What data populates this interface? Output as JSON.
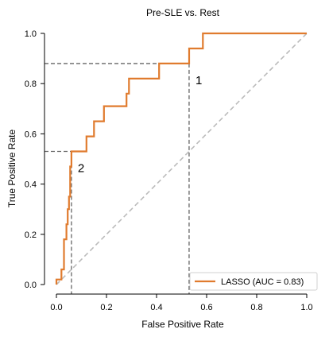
{
  "chart_data": {
    "type": "line",
    "title": "Pre-SLE vs. Rest",
    "xlabel": "False Positive Rate",
    "ylabel": "True Positive Rate",
    "xlim": [
      0,
      1
    ],
    "ylim": [
      0,
      1
    ],
    "x_ticks": [
      "0.0",
      "0.2",
      "0.4",
      "0.6",
      "0.8",
      "1.0"
    ],
    "y_ticks": [
      "0.0",
      "0.2",
      "0.4",
      "0.6",
      "0.8",
      "1.0"
    ],
    "grid": false,
    "legend_position": "lower-right",
    "series": [
      {
        "name": "LASSO (AUC = 0.83)",
        "color": "#e07b2e",
        "points": [
          [
            0.0,
            0.0
          ],
          [
            0.0,
            0.02
          ],
          [
            0.02,
            0.02
          ],
          [
            0.02,
            0.06
          ],
          [
            0.03,
            0.06
          ],
          [
            0.03,
            0.18
          ],
          [
            0.04,
            0.18
          ],
          [
            0.04,
            0.24
          ],
          [
            0.045,
            0.24
          ],
          [
            0.045,
            0.3
          ],
          [
            0.05,
            0.3
          ],
          [
            0.05,
            0.35
          ],
          [
            0.055,
            0.35
          ],
          [
            0.055,
            0.47
          ],
          [
            0.06,
            0.47
          ],
          [
            0.06,
            0.53
          ],
          [
            0.12,
            0.53
          ],
          [
            0.12,
            0.59
          ],
          [
            0.15,
            0.59
          ],
          [
            0.15,
            0.65
          ],
          [
            0.19,
            0.65
          ],
          [
            0.19,
            0.71
          ],
          [
            0.28,
            0.71
          ],
          [
            0.28,
            0.76
          ],
          [
            0.29,
            0.76
          ],
          [
            0.29,
            0.82
          ],
          [
            0.41,
            0.82
          ],
          [
            0.41,
            0.88
          ],
          [
            0.53,
            0.88
          ],
          [
            0.53,
            0.94
          ],
          [
            0.585,
            0.94
          ],
          [
            0.585,
            1.0
          ],
          [
            1.0,
            1.0
          ]
        ]
      }
    ],
    "reference_line": {
      "color": "#bbbbbb",
      "points": [
        [
          0,
          0
        ],
        [
          1,
          1
        ]
      ]
    },
    "threshold_markers": [
      {
        "label": "1",
        "fpr": 0.53,
        "tpr": 0.88
      },
      {
        "label": "2",
        "fpr": 0.06,
        "tpr": 0.53
      }
    ]
  }
}
